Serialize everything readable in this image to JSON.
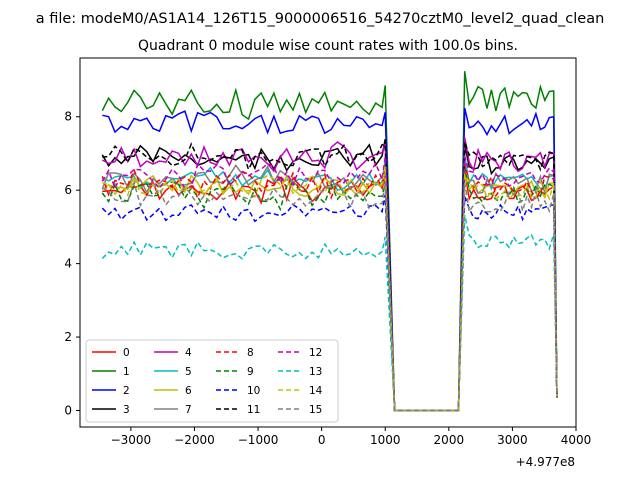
{
  "suptitle": "a file: modeM0/AS1A14_126T15_9000006516_54270cztM0_level2_quad_clean",
  "chart_data": {
    "type": "line",
    "title": "Quadrant 0 module wise count rates with 100.0s bins.",
    "xlabel": "",
    "ylabel": "",
    "xlim": [
      -3800,
      4000
    ],
    "ylim": [
      -0.45,
      9.6
    ],
    "x_ticks": [
      -3000,
      -2000,
      -1000,
      0,
      1000,
      2000,
      3000,
      4000
    ],
    "x_tick_labels": [
      "−3000",
      "−2000",
      "−1000",
      "0",
      "1000",
      "2000",
      "3000",
      "4000"
    ],
    "y_ticks": [
      0,
      2,
      4,
      6,
      8
    ],
    "y_tick_labels": [
      "0",
      "2",
      "4",
      "6",
      "8"
    ],
    "x_offset_label": "+4.977e8",
    "grid": false,
    "legend_position": "lower-left",
    "legend_columns": 4,
    "gap_range": [
      1148,
      2152
    ],
    "series": [
      {
        "name": "0",
        "color": "#ff0000",
        "dash": "solid",
        "base": 6.0,
        "spread": 0.25,
        "post": 5.9,
        "gap_value": 0.0
      },
      {
        "name": "1",
        "color": "#008000",
        "dash": "solid",
        "base": 8.4,
        "spread": 0.35,
        "post": 8.5,
        "gap_value": 0.0
      },
      {
        "name": "2",
        "color": "#0000ff",
        "dash": "solid",
        "base": 7.8,
        "spread": 0.3,
        "post": 7.8,
        "gap_value": 0.0
      },
      {
        "name": "3",
        "color": "#000000",
        "dash": "solid",
        "base": 6.9,
        "spread": 0.25,
        "post": 6.7,
        "gap_value": 0.0
      },
      {
        "name": "4",
        "color": "#bf00bf",
        "dash": "solid",
        "base": 6.9,
        "spread": 0.3,
        "post": 6.8,
        "gap_value": 0.0
      },
      {
        "name": "5",
        "color": "#00bfbf",
        "dash": "solid",
        "base": 6.3,
        "spread": 0.25,
        "post": 6.2,
        "gap_value": 0.0
      },
      {
        "name": "6",
        "color": "#bfbf00",
        "dash": "solid",
        "base": 6.1,
        "spread": 0.25,
        "post": 6.0,
        "gap_value": 0.0
      },
      {
        "name": "7",
        "color": "#808080",
        "dash": "solid",
        "base": 6.3,
        "spread": 0.3,
        "post": 6.2,
        "gap_value": 0.0
      },
      {
        "name": "8",
        "color": "#ff0000",
        "dash": "dashed",
        "base": 6.2,
        "spread": 0.3,
        "post": 6.1,
        "gap_value": 0.0
      },
      {
        "name": "9",
        "color": "#008000",
        "dash": "dashed",
        "base": 5.9,
        "spread": 0.3,
        "post": 5.9,
        "gap_value": 0.0
      },
      {
        "name": "10",
        "color": "#0000ff",
        "dash": "dashed",
        "base": 5.4,
        "spread": 0.2,
        "post": 5.4,
        "gap_value": 0.0
      },
      {
        "name": "11",
        "color": "#000000",
        "dash": "dashed",
        "base": 6.9,
        "spread": 0.25,
        "post": 6.8,
        "gap_value": 0.0
      },
      {
        "name": "12",
        "color": "#bf00bf",
        "dash": "dashed",
        "base": 6.4,
        "spread": 0.3,
        "post": 6.3,
        "gap_value": 0.0
      },
      {
        "name": "13",
        "color": "#00bfbf",
        "dash": "dashed",
        "base": 4.35,
        "spread": 0.2,
        "post": 4.6,
        "gap_value": 0.0
      },
      {
        "name": "14",
        "color": "#bfbf00",
        "dash": "dashed",
        "base": 6.1,
        "spread": 0.25,
        "post": 6.0,
        "gap_value": 0.0
      },
      {
        "name": "15",
        "color": "#808080",
        "dash": "dashed",
        "base": 5.8,
        "spread": 0.3,
        "post": 5.7,
        "gap_value": 0.0
      }
    ]
  }
}
